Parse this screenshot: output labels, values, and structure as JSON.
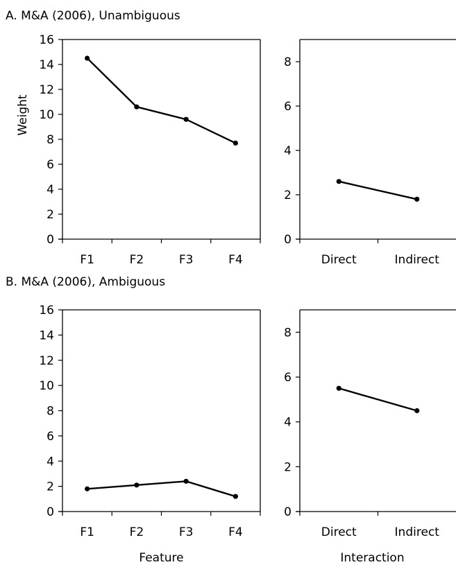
{
  "chart_data": [
    {
      "type": "line",
      "panel": "A",
      "title": "A. M&A (2006), Unambiguous",
      "xlabel": "",
      "ylabel": "Weight",
      "categories": [
        "F1",
        "F2",
        "F3",
        "F4"
      ],
      "values": [
        14.5,
        10.6,
        9.6,
        7.7
      ],
      "ylim": [
        0,
        16
      ],
      "yticks": [
        0,
        2,
        4,
        6,
        8,
        10,
        12,
        14,
        16
      ],
      "grid": false
    },
    {
      "type": "line",
      "panel": "A",
      "title": "",
      "xlabel": "",
      "ylabel": "",
      "categories": [
        "Direct",
        "Indirect"
      ],
      "values": [
        2.6,
        1.8
      ],
      "ylim": [
        0,
        9
      ],
      "yticks": [
        0,
        2,
        4,
        6,
        8
      ],
      "grid": false
    },
    {
      "type": "line",
      "panel": "B",
      "title": "B. M&A (2006), Ambiguous",
      "xlabel": "Feature",
      "ylabel": "",
      "categories": [
        "F1",
        "F2",
        "F3",
        "F4"
      ],
      "values": [
        1.8,
        2.1,
        2.4,
        1.2
      ],
      "ylim": [
        0,
        16
      ],
      "yticks": [
        0,
        2,
        4,
        6,
        8,
        10,
        12,
        14,
        16
      ],
      "grid": false
    },
    {
      "type": "line",
      "panel": "B",
      "title": "",
      "xlabel": "Interaction",
      "ylabel": "",
      "categories": [
        "Direct",
        "Indirect"
      ],
      "values": [
        5.5,
        4.5
      ],
      "ylim": [
        0,
        9
      ],
      "yticks": [
        0,
        2,
        4,
        6,
        8
      ],
      "grid": false
    }
  ]
}
